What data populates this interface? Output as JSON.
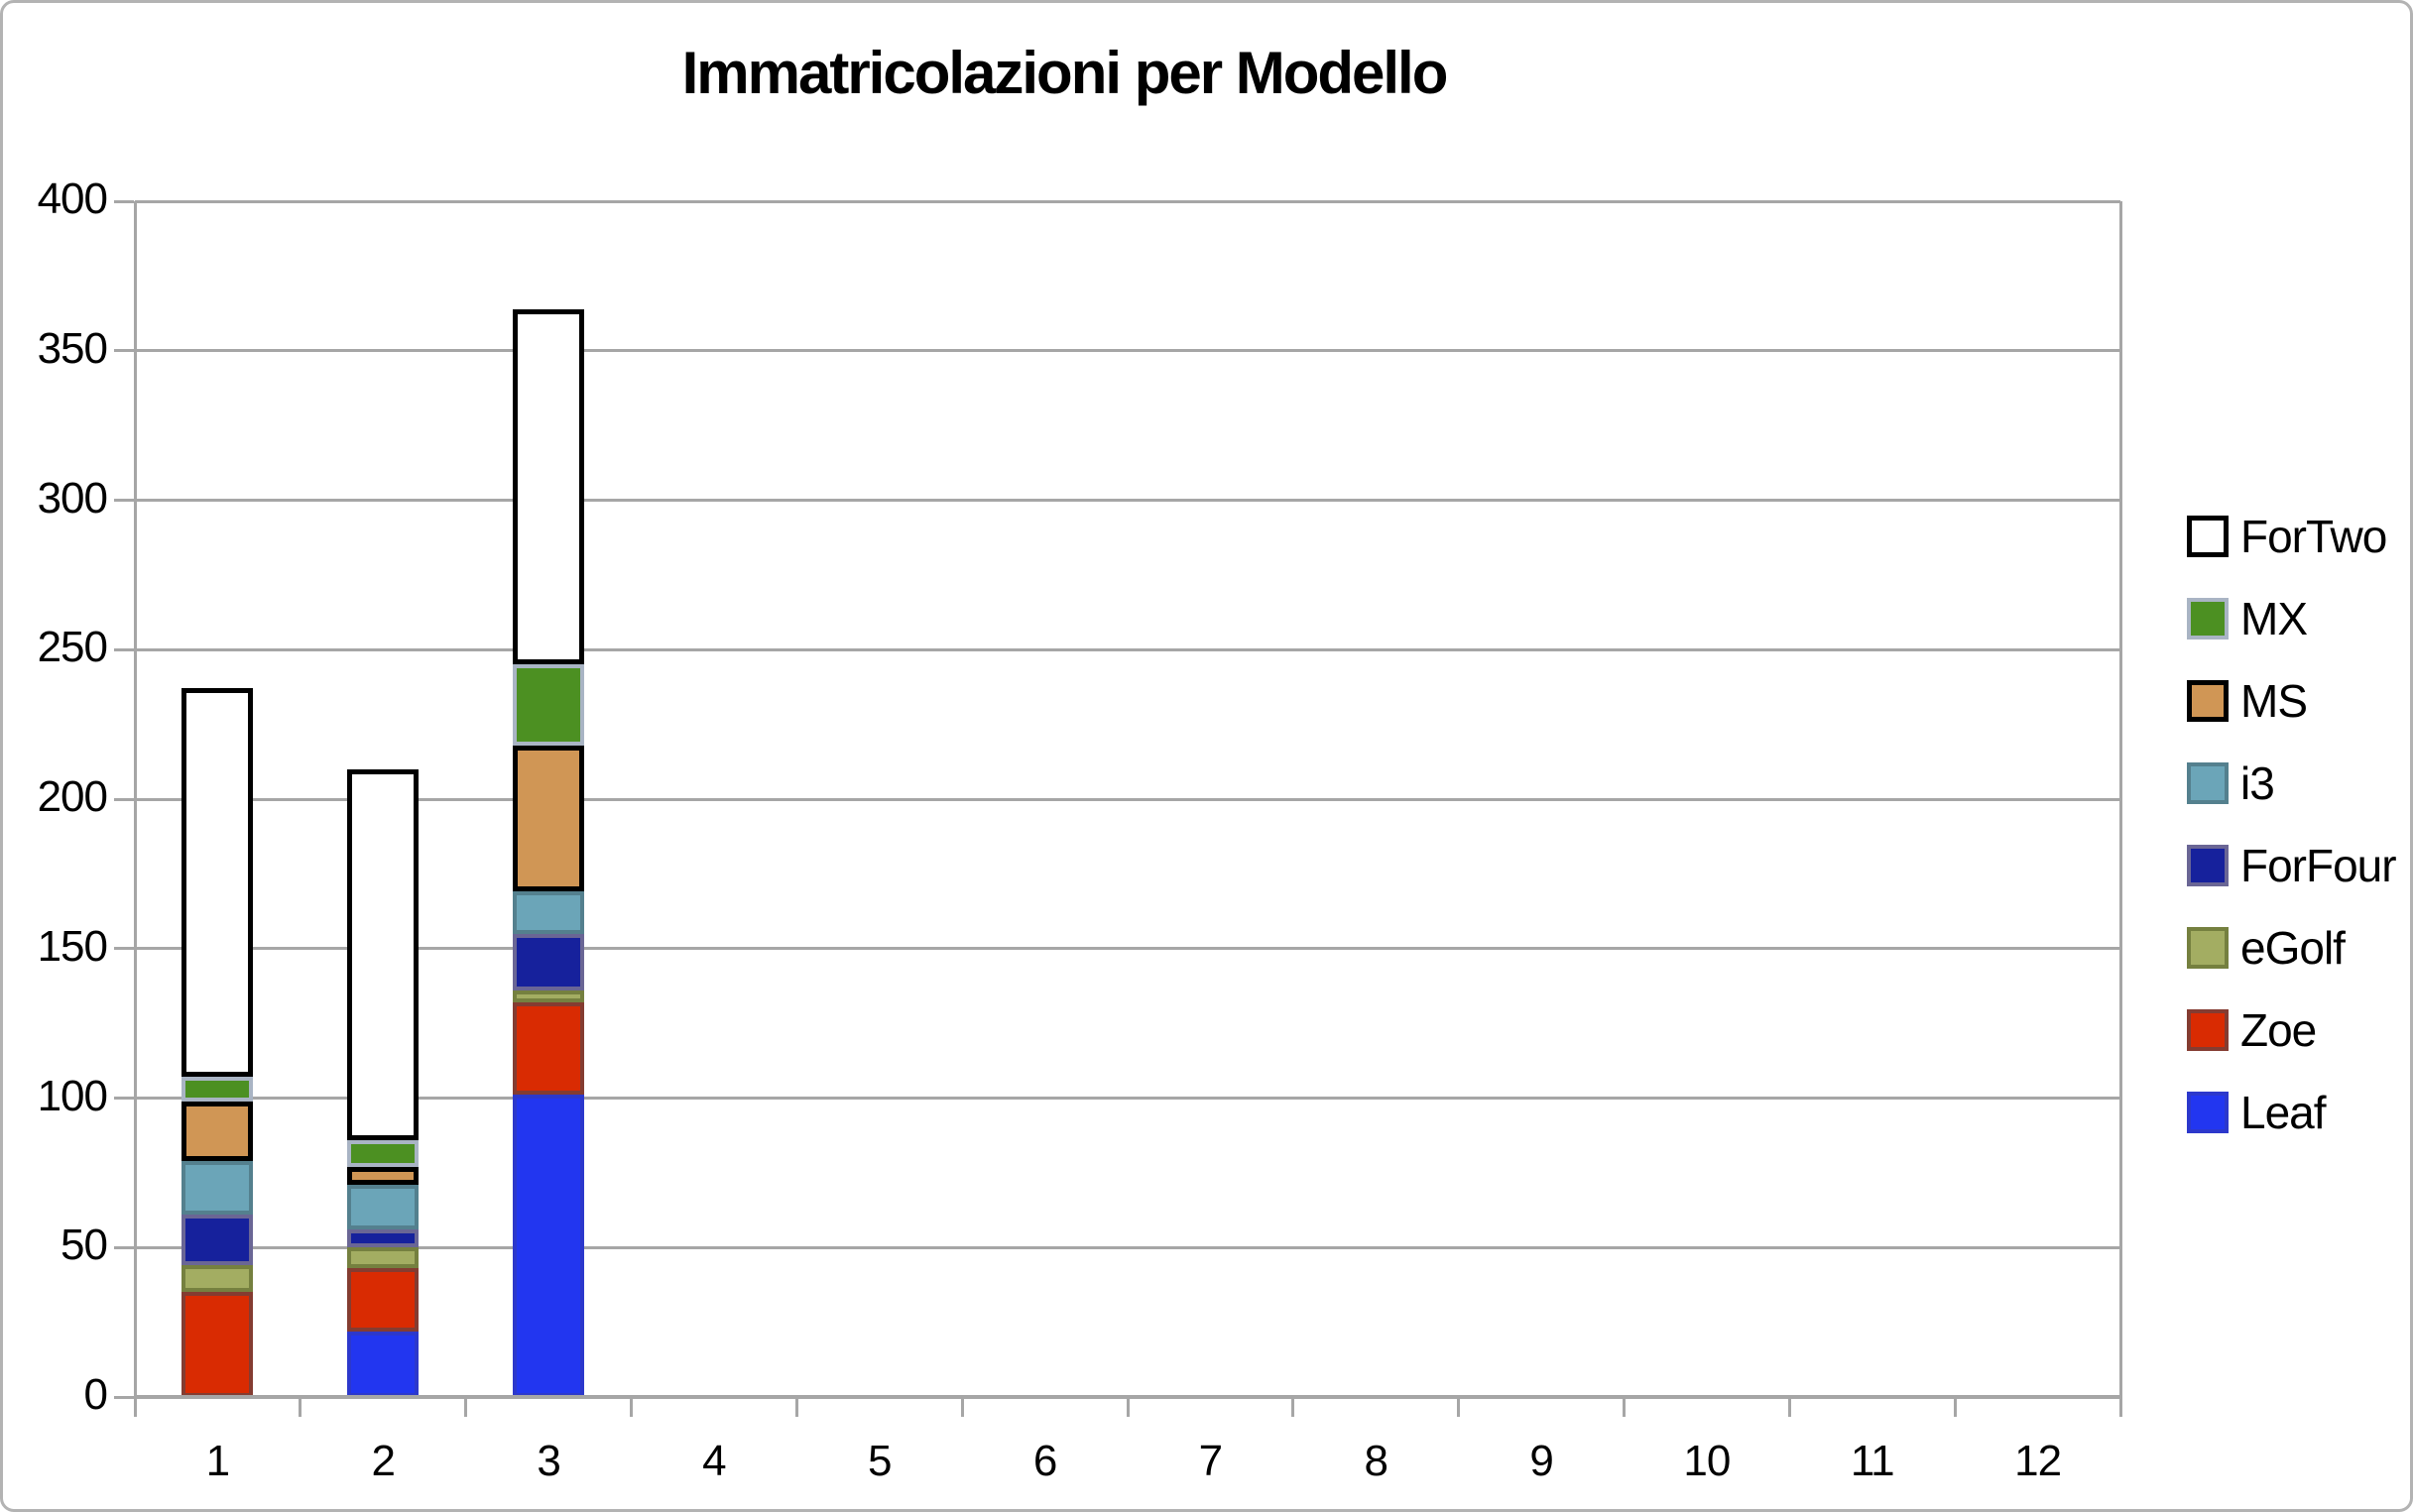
{
  "chart_data": {
    "type": "bar",
    "stacked": true,
    "title": "Immatricolazioni per Modello",
    "categories": [
      "1",
      "2",
      "3",
      "4",
      "5",
      "6",
      "7",
      "8",
      "9",
      "10",
      "11",
      "12"
    ],
    "series": [
      {
        "name": "Leaf",
        "fill": "#2236f0",
        "border": "#2c38cc",
        "border_width": 4,
        "values": [
          0,
          22,
          101,
          0,
          0,
          0,
          0,
          0,
          0,
          0,
          0,
          0
        ]
      },
      {
        "name": "Zoe",
        "fill": "#d92b02",
        "border": "#843c31",
        "border_width": 4,
        "values": [
          35,
          21,
          31,
          0,
          0,
          0,
          0,
          0,
          0,
          0,
          0,
          0
        ]
      },
      {
        "name": "eGolf",
        "fill": "#a3ad62",
        "border": "#75803f",
        "border_width": 4,
        "values": [
          9,
          7,
          4,
          0,
          0,
          0,
          0,
          0,
          0,
          0,
          0,
          0
        ]
      },
      {
        "name": "ForFour",
        "fill": "#16219c",
        "border": "#6a6695",
        "border_width": 4,
        "values": [
          17,
          6,
          19,
          0,
          0,
          0,
          0,
          0,
          0,
          0,
          0,
          0
        ]
      },
      {
        "name": "i3",
        "fill": "#6ba5b8",
        "border": "#54808e",
        "border_width": 4,
        "values": [
          18,
          15,
          14,
          0,
          0,
          0,
          0,
          0,
          0,
          0,
          0,
          0
        ]
      },
      {
        "name": "MS",
        "fill": "#d09655",
        "border": "#000000",
        "border_width": 5,
        "values": [
          20,
          6,
          49,
          0,
          0,
          0,
          0,
          0,
          0,
          0,
          0,
          0
        ]
      },
      {
        "name": "MX",
        "fill": "#4c9022",
        "border": "#a9b4c4",
        "border_width": 4,
        "values": [
          8,
          9,
          27,
          0,
          0,
          0,
          0,
          0,
          0,
          0,
          0,
          0
        ]
      },
      {
        "name": "ForTwo",
        "fill": "#ffffff",
        "border": "#000000",
        "border_width": 5,
        "values": [
          130,
          124,
          119,
          0,
          0,
          0,
          0,
          0,
          0,
          0,
          0,
          0
        ]
      }
    ],
    "totals": [
      237,
      210,
      364,
      0,
      0,
      0,
      0,
      0,
      0,
      0,
      0,
      0
    ],
    "ylim": [
      0,
      400
    ],
    "yticks": [
      "0",
      "50",
      "100",
      "150",
      "200",
      "250",
      "300",
      "350",
      "400"
    ],
    "grid": true,
    "legend_position": "right",
    "legend_order_top_to_bottom": [
      "ForTwo",
      "MX",
      "MS",
      "i3",
      "ForFour",
      "eGolf",
      "Zoe",
      "Leaf"
    ]
  },
  "style": {
    "axis_color": "#a6a6a6",
    "frame_color": "#b3b3b3",
    "text_color": "#000000",
    "background": "#ffffff"
  }
}
